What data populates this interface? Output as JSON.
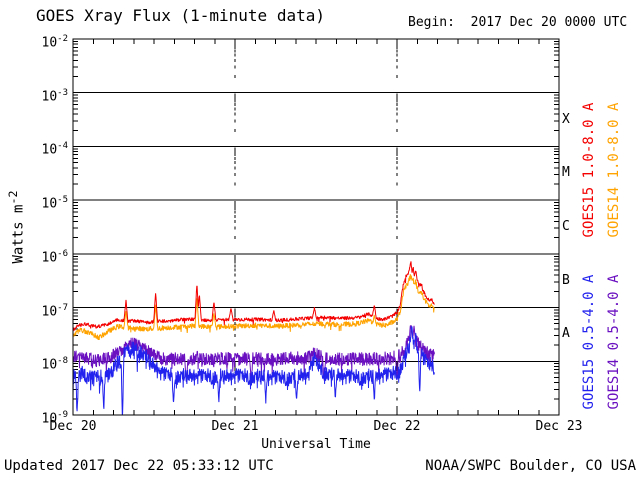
{
  "header": {
    "title": "GOES Xray Flux (1-minute data)",
    "begin": "Begin:  2017 Dec 20 0000 UTC"
  },
  "footer": {
    "updated": "Updated 2017 Dec 22 05:33:12 UTC",
    "source": "NOAA/SWPC Boulder, CO USA"
  },
  "colors": {
    "axis": "#000000",
    "background": "#ffffff",
    "goes15_long": "#f40000",
    "goes14_long": "#ffa300",
    "goes15_short": "#2222ee",
    "goes14_short": "#6a10c0"
  },
  "chart_data": {
    "type": "line",
    "title": "GOES Xray Flux (1-minute data)",
    "xlabel": "Universal Time",
    "ylabel": "Watts m-2",
    "ylabel_base": "Watts m",
    "ylabel_exp": "-2",
    "begin_time": "2017 Dec 20 0000 UTC",
    "data_end_time": "2017 Dec 22 05:33 UTC",
    "x_axis": {
      "tick_labels": [
        "Dec 20",
        "Dec 21",
        "Dec 22",
        "Dec 23"
      ],
      "tick_days": [
        0,
        1,
        2,
        3
      ],
      "minor_tick_hours": 3,
      "range_days": [
        0,
        3
      ]
    },
    "y_axis": {
      "scale": "log",
      "unit": "Watts m-2",
      "tick_exponents": [
        -2,
        -3,
        -4,
        -5,
        -6,
        -7,
        -8,
        -9
      ],
      "range": [
        1e-09,
        0.01
      ]
    },
    "flare_classes": [
      {
        "label": "X",
        "log_center": -3.5
      },
      {
        "label": "M",
        "log_center": -4.5
      },
      {
        "label": "C",
        "log_center": -5.5
      },
      {
        "label": "B",
        "log_center": -6.5
      },
      {
        "label": "A",
        "log_center": -7.5
      }
    ],
    "grid": {
      "horizontal": "solid black line at each decade",
      "vertical": "dotted minor-tick columns at day boundaries Dec 21 and Dec 22"
    },
    "t_data_end_days": 2.231,
    "series": [
      {
        "id": "goes15_long",
        "label": "GOES15 1.0-8.0 A",
        "color": "#f40000",
        "noise_dex": 0.035,
        "tail_p": 0.02,
        "tail_mag": 0.1,
        "spike_w": 0.012,
        "baseline_keypoints": [
          [
            0,
            -7.42
          ],
          [
            0.03,
            -7.33
          ],
          [
            0.08,
            -7.3
          ],
          [
            0.15,
            -7.36
          ],
          [
            0.22,
            -7.3
          ],
          [
            0.28,
            -7.22
          ],
          [
            0.33,
            -7.26
          ],
          [
            0.38,
            -7.24
          ],
          [
            0.45,
            -7.28
          ],
          [
            0.52,
            -7.26
          ],
          [
            0.6,
            -7.25
          ],
          [
            0.68,
            -7.22
          ],
          [
            0.76,
            -7.22
          ],
          [
            0.85,
            -7.24
          ],
          [
            0.95,
            -7.22
          ],
          [
            1.05,
            -7.22
          ],
          [
            1.15,
            -7.22
          ],
          [
            1.25,
            -7.24
          ],
          [
            1.35,
            -7.22
          ],
          [
            1.45,
            -7.2
          ],
          [
            1.55,
            -7.18
          ],
          [
            1.65,
            -7.2
          ],
          [
            1.75,
            -7.19
          ],
          [
            1.83,
            -7.12
          ],
          [
            1.87,
            -7.2
          ],
          [
            1.92,
            -7.22
          ],
          [
            1.97,
            -7.16
          ],
          [
            2.0,
            -7.1
          ],
          [
            2.02,
            -6.95
          ],
          [
            2.04,
            -6.55
          ],
          [
            2.055,
            -6.42
          ],
          [
            2.07,
            -6.35
          ],
          [
            2.08,
            -6.22
          ],
          [
            2.086,
            -6.15
          ],
          [
            2.093,
            -6.35
          ],
          [
            2.1,
            -6.25
          ],
          [
            2.107,
            -6.42
          ],
          [
            2.115,
            -6.32
          ],
          [
            2.125,
            -6.48
          ],
          [
            2.135,
            -6.6
          ],
          [
            2.15,
            -6.55
          ],
          [
            2.16,
            -6.68
          ],
          [
            2.18,
            -6.8
          ],
          [
            2.2,
            -6.88
          ],
          [
            2.215,
            -6.85
          ],
          [
            2.231,
            -6.95
          ]
        ],
        "spikes_up": [
          [
            0.327,
            -6.85
          ],
          [
            0.51,
            -6.72
          ],
          [
            0.765,
            -6.53
          ],
          [
            0.78,
            -6.75
          ],
          [
            0.87,
            -6.88
          ],
          [
            0.975,
            -7.0
          ],
          [
            1.24,
            -7.05
          ],
          [
            1.49,
            -7.0
          ],
          [
            1.86,
            -6.95
          ]
        ],
        "spikes_down": []
      },
      {
        "id": "goes14_long",
        "label": "GOES14 1.0-8.0 A",
        "color": "#ffa300",
        "noise_dex": 0.05,
        "tail_p": 0.03,
        "tail_mag": 0.12,
        "spike_w": 0.012,
        "baseline_keypoints": [
          [
            0,
            -7.52
          ],
          [
            0.04,
            -7.42
          ],
          [
            0.1,
            -7.46
          ],
          [
            0.16,
            -7.56
          ],
          [
            0.22,
            -7.44
          ],
          [
            0.28,
            -7.35
          ],
          [
            0.35,
            -7.38
          ],
          [
            0.45,
            -7.4
          ],
          [
            0.55,
            -7.38
          ],
          [
            0.65,
            -7.36
          ],
          [
            0.75,
            -7.34
          ],
          [
            0.85,
            -7.36
          ],
          [
            0.95,
            -7.35
          ],
          [
            1.05,
            -7.34
          ],
          [
            1.15,
            -7.33
          ],
          [
            1.25,
            -7.35
          ],
          [
            1.35,
            -7.33
          ],
          [
            1.45,
            -7.31
          ],
          [
            1.55,
            -7.3
          ],
          [
            1.65,
            -7.32
          ],
          [
            1.75,
            -7.3
          ],
          [
            1.83,
            -7.24
          ],
          [
            1.88,
            -7.32
          ],
          [
            1.93,
            -7.33
          ],
          [
            1.97,
            -7.28
          ],
          [
            2.0,
            -7.22
          ],
          [
            2.02,
            -7.08
          ],
          [
            2.04,
            -6.72
          ],
          [
            2.055,
            -6.6
          ],
          [
            2.07,
            -6.52
          ],
          [
            2.08,
            -6.44
          ],
          [
            2.086,
            -6.38
          ],
          [
            2.093,
            -6.55
          ],
          [
            2.1,
            -6.45
          ],
          [
            2.107,
            -6.6
          ],
          [
            2.115,
            -6.5
          ],
          [
            2.125,
            -6.65
          ],
          [
            2.135,
            -6.75
          ],
          [
            2.15,
            -6.7
          ],
          [
            2.16,
            -6.8
          ],
          [
            2.18,
            -6.9
          ],
          [
            2.2,
            -6.98
          ],
          [
            2.215,
            -6.95
          ],
          [
            2.231,
            -7.05
          ]
        ],
        "spikes_up": [
          [
            0.327,
            -7.05
          ],
          [
            0.51,
            -6.95
          ],
          [
            0.765,
            -6.8
          ],
          [
            0.87,
            -7.1
          ],
          [
            1.86,
            -7.15
          ]
        ],
        "spikes_down": []
      },
      {
        "id": "goes15_short",
        "label": "GOES15 0.5-4.0 A",
        "color": "#2222ee",
        "noise_dex": 0.16,
        "tail_p": 0.06,
        "tail_mag": 0.35,
        "spike_w": 0.008,
        "baseline_keypoints": [
          [
            0,
            -8.28
          ],
          [
            0.05,
            -8.22
          ],
          [
            0.1,
            -8.32
          ],
          [
            0.16,
            -8.3
          ],
          [
            0.22,
            -8.25
          ],
          [
            0.3,
            -7.95
          ],
          [
            0.36,
            -7.72
          ],
          [
            0.42,
            -7.82
          ],
          [
            0.48,
            -8.05
          ],
          [
            0.55,
            -8.25
          ],
          [
            0.65,
            -8.28
          ],
          [
            0.75,
            -8.3
          ],
          [
            0.85,
            -8.28
          ],
          [
            0.95,
            -8.3
          ],
          [
            1.05,
            -8.28
          ],
          [
            1.15,
            -8.3
          ],
          [
            1.25,
            -8.32
          ],
          [
            1.35,
            -8.3
          ],
          [
            1.45,
            -8.28
          ],
          [
            1.49,
            -7.98
          ],
          [
            1.53,
            -8.15
          ],
          [
            1.6,
            -8.28
          ],
          [
            1.7,
            -8.3
          ],
          [
            1.8,
            -8.3
          ],
          [
            1.9,
            -8.28
          ],
          [
            1.97,
            -8.25
          ],
          [
            2.02,
            -8.15
          ],
          [
            2.05,
            -7.92
          ],
          [
            2.07,
            -7.78
          ],
          [
            2.09,
            -7.58
          ],
          [
            2.11,
            -7.72
          ],
          [
            2.13,
            -7.82
          ],
          [
            2.16,
            -7.95
          ],
          [
            2.19,
            -8.05
          ],
          [
            2.231,
            -8.1
          ]
        ],
        "spikes_up": [
          [
            2.09,
            -7.32
          ],
          [
            2.115,
            -7.48
          ]
        ],
        "spikes_down": [
          [
            0.025,
            -8.95
          ],
          [
            0.19,
            -8.9
          ],
          [
            0.305,
            -9.2
          ],
          [
            0.62,
            -8.85
          ],
          [
            0.9,
            -8.8
          ],
          [
            1.19,
            -8.75
          ],
          [
            1.38,
            -8.8
          ],
          [
            1.62,
            -8.7
          ],
          [
            1.86,
            -8.75
          ],
          [
            2.14,
            -8.65
          ]
        ]
      },
      {
        "id": "goes14_short",
        "label": "GOES14 0.5-4.0 A",
        "color": "#6a10c0",
        "noise_dex": 0.13,
        "tail_p": 0.04,
        "tail_mag": 0.25,
        "spike_w": 0.01,
        "baseline_keypoints": [
          [
            0,
            -7.9
          ],
          [
            0.08,
            -7.95
          ],
          [
            0.15,
            -7.98
          ],
          [
            0.22,
            -7.95
          ],
          [
            0.3,
            -7.8
          ],
          [
            0.36,
            -7.66
          ],
          [
            0.42,
            -7.72
          ],
          [
            0.48,
            -7.85
          ],
          [
            0.55,
            -7.95
          ],
          [
            0.65,
            -7.96
          ],
          [
            0.75,
            -7.94
          ],
          [
            0.85,
            -7.95
          ],
          [
            0.95,
            -7.96
          ],
          [
            1.05,
            -7.95
          ],
          [
            1.15,
            -7.96
          ],
          [
            1.25,
            -7.97
          ],
          [
            1.35,
            -7.95
          ],
          [
            1.45,
            -7.94
          ],
          [
            1.49,
            -7.86
          ],
          [
            1.53,
            -7.92
          ],
          [
            1.6,
            -7.96
          ],
          [
            1.7,
            -7.95
          ],
          [
            1.8,
            -7.96
          ],
          [
            1.9,
            -7.95
          ],
          [
            1.97,
            -7.94
          ],
          [
            2.02,
            -7.9
          ],
          [
            2.05,
            -7.72
          ],
          [
            2.07,
            -7.62
          ],
          [
            2.09,
            -7.52
          ],
          [
            2.11,
            -7.62
          ],
          [
            2.13,
            -7.66
          ],
          [
            2.16,
            -7.76
          ],
          [
            2.19,
            -7.85
          ],
          [
            2.231,
            -7.88
          ]
        ],
        "spikes_up": [
          [
            2.085,
            -7.28
          ],
          [
            2.105,
            -7.38
          ]
        ],
        "spikes_down": [
          [
            0.7,
            -8.4
          ],
          [
            1.1,
            -8.35
          ],
          [
            1.55,
            -8.4
          ],
          [
            2.0,
            -8.35
          ]
        ]
      }
    ],
    "legend_position": "right side, rotated 90deg, GOES15 column inner, GOES14 column outer"
  }
}
